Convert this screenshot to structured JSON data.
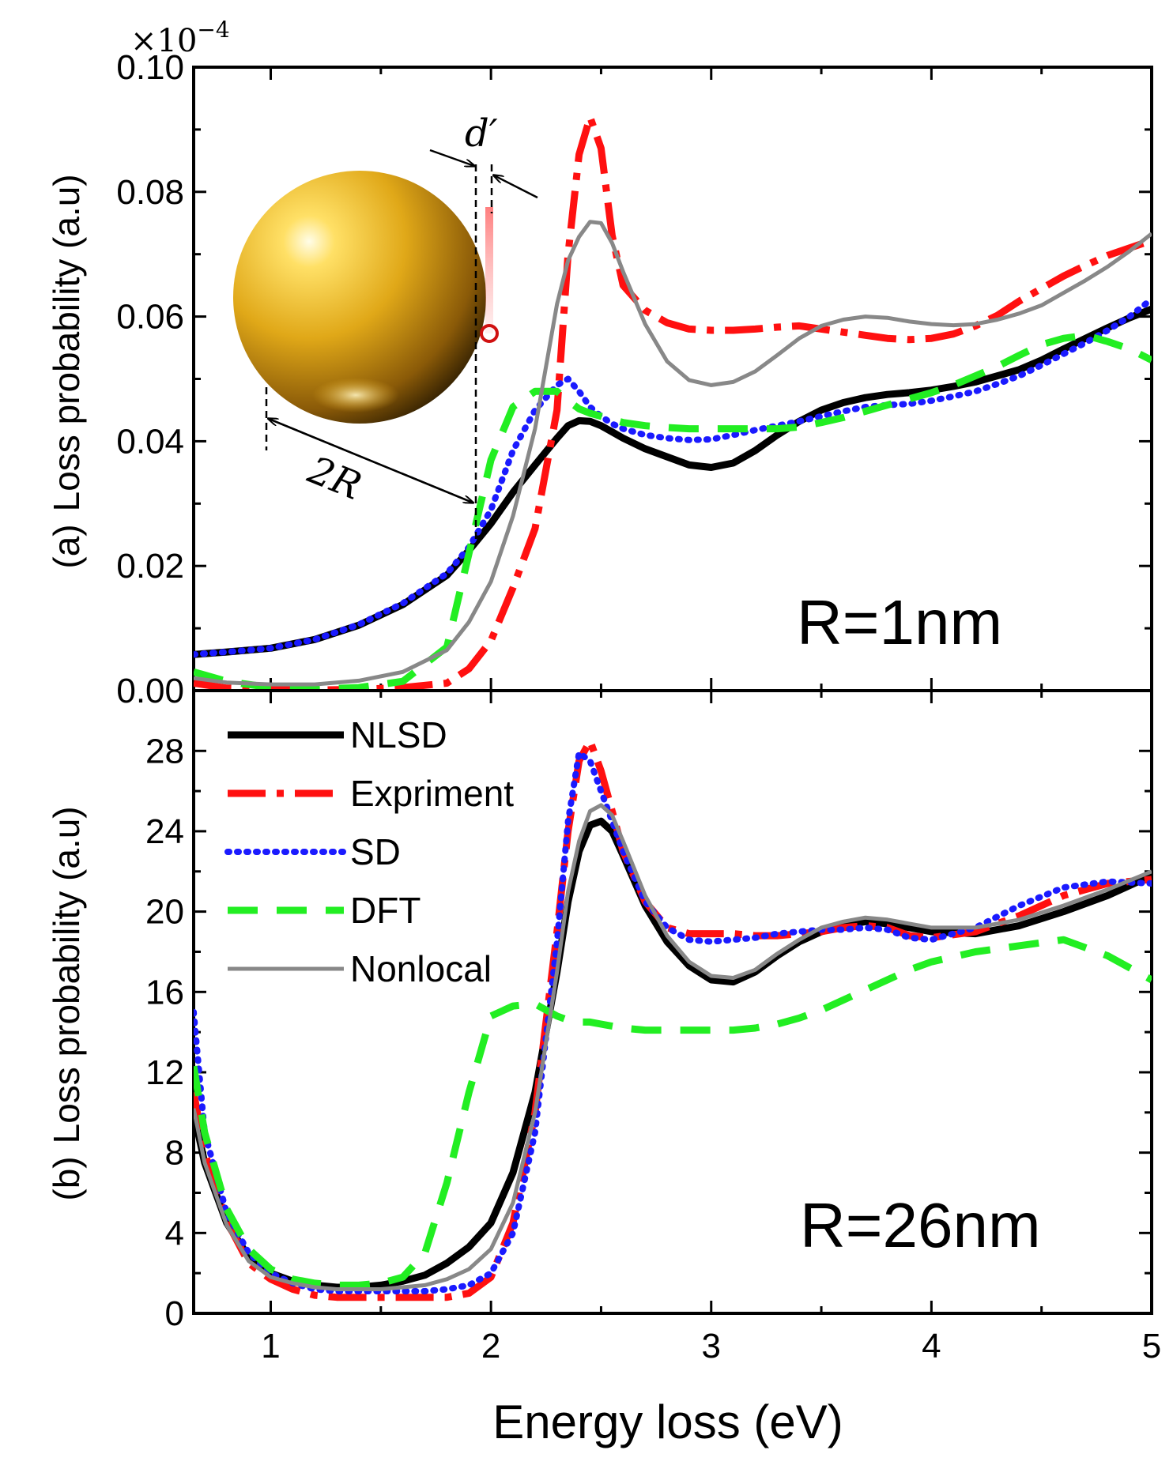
{
  "exponent_label": "×10",
  "exponent_power": "−4",
  "colors": {
    "NLSD": "#000000",
    "Expriment": "#ff1010",
    "SD": "#1a1aff",
    "DFT": "#22ee22",
    "Nonlocal": "#888888",
    "gold": "#d4a017"
  },
  "inset": {
    "d_label": "d′",
    "r_label": "2R"
  },
  "chart_data": [
    {
      "type": "line",
      "panel_label": "(a)",
      "radius_label": "R=1nm",
      "ylabel": "Loss probability (a.u)",
      "xlabel": "Energy loss (eV)",
      "xlim": [
        0.65,
        5
      ],
      "ylim": [
        0,
        0.1
      ],
      "yticks": [
        0,
        0.02,
        0.04,
        0.06,
        0.08,
        0.1
      ],
      "ytick_labels": [
        "0.00",
        "0.02",
        "0.04",
        "0.06",
        "0.08",
        "0.10"
      ],
      "x": [
        0.65,
        0.8,
        1.0,
        1.2,
        1.4,
        1.6,
        1.8,
        1.9,
        2.0,
        2.1,
        2.2,
        2.3,
        2.35,
        2.4,
        2.45,
        2.5,
        2.55,
        2.6,
        2.7,
        2.8,
        2.9,
        3.0,
        3.1,
        3.2,
        3.3,
        3.4,
        3.5,
        3.6,
        3.7,
        3.8,
        3.9,
        4.0,
        4.1,
        4.2,
        4.3,
        4.4,
        4.5,
        4.6,
        4.7,
        4.8,
        4.9,
        5.0
      ],
      "series": [
        {
          "name": "NLSD",
          "values": [
            0.0058,
            0.0062,
            0.0068,
            0.0082,
            0.0105,
            0.0138,
            0.0185,
            0.0225,
            0.0268,
            0.0318,
            0.0362,
            0.0405,
            0.0425,
            0.0433,
            0.0432,
            0.0425,
            0.0415,
            0.0405,
            0.0388,
            0.0375,
            0.0362,
            0.0358,
            0.0365,
            0.0385,
            0.041,
            0.0432,
            0.045,
            0.0462,
            0.047,
            0.0475,
            0.0478,
            0.0482,
            0.0488,
            0.0495,
            0.0505,
            0.0515,
            0.053,
            0.0548,
            0.0565,
            0.0582,
            0.0598,
            0.0612
          ]
        },
        {
          "name": "Expriment",
          "values": [
            0.0012,
            0.0004,
            0.0002,
            0.0001,
            0.0002,
            0.0005,
            0.0012,
            0.0035,
            0.008,
            0.0165,
            0.026,
            0.045,
            0.07,
            0.086,
            0.092,
            0.087,
            0.073,
            0.065,
            0.061,
            0.059,
            0.058,
            0.0578,
            0.0578,
            0.058,
            0.0583,
            0.0585,
            0.058,
            0.0575,
            0.057,
            0.0565,
            0.0563,
            0.0565,
            0.0572,
            0.0585,
            0.0602,
            0.0625,
            0.0645,
            0.0665,
            0.0682,
            0.0698,
            0.071,
            0.0722
          ]
        },
        {
          "name": "SD",
          "values": [
            0.0058,
            0.0062,
            0.0068,
            0.0082,
            0.0106,
            0.014,
            0.0188,
            0.023,
            0.029,
            0.0385,
            0.045,
            0.049,
            0.05,
            0.048,
            0.0455,
            0.044,
            0.0428,
            0.042,
            0.041,
            0.0405,
            0.0402,
            0.0403,
            0.041,
            0.0418,
            0.0425,
            0.0432,
            0.044,
            0.0448,
            0.0455,
            0.0458,
            0.046,
            0.0465,
            0.0472,
            0.048,
            0.0492,
            0.0505,
            0.0522,
            0.054,
            0.0558,
            0.0578,
            0.06,
            0.0628
          ]
        },
        {
          "name": "DFT",
          "values": [
            0.003,
            0.0015,
            0.0005,
            0.0002,
            0.0005,
            0.0015,
            0.007,
            0.022,
            0.037,
            0.0455,
            0.048,
            0.048,
            0.0465,
            0.0452,
            0.0445,
            0.044,
            0.0435,
            0.043,
            0.0425,
            0.0422,
            0.042,
            0.042,
            0.042,
            0.042,
            0.042,
            0.0423,
            0.043,
            0.0438,
            0.0448,
            0.0458,
            0.0468,
            0.0478,
            0.049,
            0.0505,
            0.052,
            0.0538,
            0.0555,
            0.0565,
            0.057,
            0.056,
            0.0548,
            0.053
          ]
        },
        {
          "name": "Nonlocal",
          "values": [
            0.002,
            0.0013,
            0.001,
            0.001,
            0.0016,
            0.003,
            0.0065,
            0.011,
            0.0175,
            0.028,
            0.042,
            0.062,
            0.069,
            0.0728,
            0.0752,
            0.075,
            0.0718,
            0.0672,
            0.0588,
            0.0528,
            0.0498,
            0.049,
            0.0495,
            0.0512,
            0.0538,
            0.0565,
            0.0585,
            0.0595,
            0.06,
            0.0598,
            0.0592,
            0.0588,
            0.0586,
            0.0588,
            0.0595,
            0.0605,
            0.0618,
            0.0638,
            0.0658,
            0.068,
            0.0705,
            0.0733
          ]
        }
      ]
    },
    {
      "type": "line",
      "panel_label": "(b)",
      "radius_label": "R=26nm",
      "ylabel": "Loss probability (a.u)",
      "xlabel": "Energy loss (eV)",
      "xlim": [
        0.65,
        5
      ],
      "ylim": [
        0,
        31
      ],
      "yticks": [
        0,
        4,
        8,
        12,
        16,
        20,
        24,
        28
      ],
      "ytick_labels": [
        "0",
        "4",
        "8",
        "12",
        "16",
        "20",
        "24",
        "28"
      ],
      "xticks": [
        1,
        2,
        3,
        4,
        5
      ],
      "xtick_labels": [
        "1",
        "2",
        "3",
        "4",
        "5"
      ],
      "legend_position": "top-left",
      "x": [
        0.65,
        0.7,
        0.8,
        0.9,
        1.0,
        1.1,
        1.2,
        1.3,
        1.4,
        1.5,
        1.6,
        1.7,
        1.8,
        1.9,
        2.0,
        2.1,
        2.2,
        2.3,
        2.35,
        2.4,
        2.45,
        2.5,
        2.55,
        2.6,
        2.7,
        2.8,
        2.9,
        3.0,
        3.1,
        3.2,
        3.3,
        3.4,
        3.5,
        3.6,
        3.7,
        3.8,
        3.9,
        4.0,
        4.2,
        4.4,
        4.6,
        4.8,
        5.0
      ],
      "series": [
        {
          "name": "NLSD",
          "values": [
            10.0,
            7.5,
            4.5,
            2.8,
            2.0,
            1.6,
            1.4,
            1.3,
            1.3,
            1.4,
            1.6,
            1.9,
            2.5,
            3.3,
            4.5,
            7.0,
            11.0,
            17.0,
            20.5,
            23.0,
            24.3,
            24.5,
            24.0,
            22.8,
            20.3,
            18.5,
            17.3,
            16.6,
            16.5,
            17.0,
            17.8,
            18.5,
            19.0,
            19.3,
            19.5,
            19.4,
            19.2,
            19.0,
            18.9,
            19.3,
            20.0,
            20.8,
            21.8
          ]
        },
        {
          "name": "Expriment",
          "values": [
            11.0,
            8.0,
            4.6,
            2.5,
            1.7,
            1.2,
            0.9,
            0.8,
            0.8,
            0.8,
            0.8,
            0.8,
            0.8,
            1.0,
            1.8,
            4.5,
            10.0,
            19.0,
            24.0,
            27.5,
            28.5,
            27.0,
            25.0,
            23.0,
            20.5,
            19.2,
            18.9,
            18.9,
            18.9,
            18.8,
            18.8,
            18.9,
            19.0,
            19.2,
            19.3,
            19.2,
            18.8,
            18.7,
            19.0,
            19.8,
            20.8,
            21.4,
            21.6
          ]
        },
        {
          "name": "SD",
          "values": [
            15.0,
            9.0,
            5.0,
            3.0,
            2.0,
            1.5,
            1.2,
            1.1,
            1.1,
            1.1,
            1.1,
            1.1,
            1.2,
            1.4,
            2.0,
            4.0,
            9.0,
            18.5,
            24.5,
            27.9,
            27.5,
            26.0,
            24.5,
            23.0,
            20.5,
            19.2,
            18.6,
            18.5,
            18.6,
            18.7,
            18.9,
            19.0,
            19.1,
            19.1,
            19.2,
            19.1,
            18.7,
            18.6,
            19.2,
            20.3,
            21.2,
            21.5,
            21.4
          ]
        },
        {
          "name": "DFT",
          "values": [
            12.3,
            9.0,
            5.2,
            3.2,
            2.2,
            1.7,
            1.5,
            1.4,
            1.4,
            1.5,
            1.8,
            3.0,
            6.5,
            11.0,
            14.8,
            15.3,
            15.4,
            14.8,
            14.6,
            14.5,
            14.5,
            14.4,
            14.3,
            14.2,
            14.1,
            14.1,
            14.1,
            14.1,
            14.1,
            14.2,
            14.4,
            14.7,
            15.1,
            15.6,
            16.1,
            16.6,
            17.1,
            17.5,
            18.0,
            18.3,
            18.6,
            17.8,
            16.6
          ]
        },
        {
          "name": "Nonlocal",
          "values": [
            10.2,
            7.5,
            4.4,
            2.6,
            1.8,
            1.5,
            1.3,
            1.2,
            1.2,
            1.2,
            1.3,
            1.4,
            1.7,
            2.2,
            3.2,
            5.5,
            10.0,
            17.0,
            21.0,
            23.5,
            25.0,
            25.3,
            24.8,
            23.5,
            20.8,
            18.8,
            17.5,
            16.8,
            16.7,
            17.1,
            17.9,
            18.6,
            19.2,
            19.5,
            19.7,
            19.6,
            19.4,
            19.2,
            19.2,
            19.6,
            20.3,
            21.1,
            22.0
          ]
        }
      ]
    }
  ]
}
